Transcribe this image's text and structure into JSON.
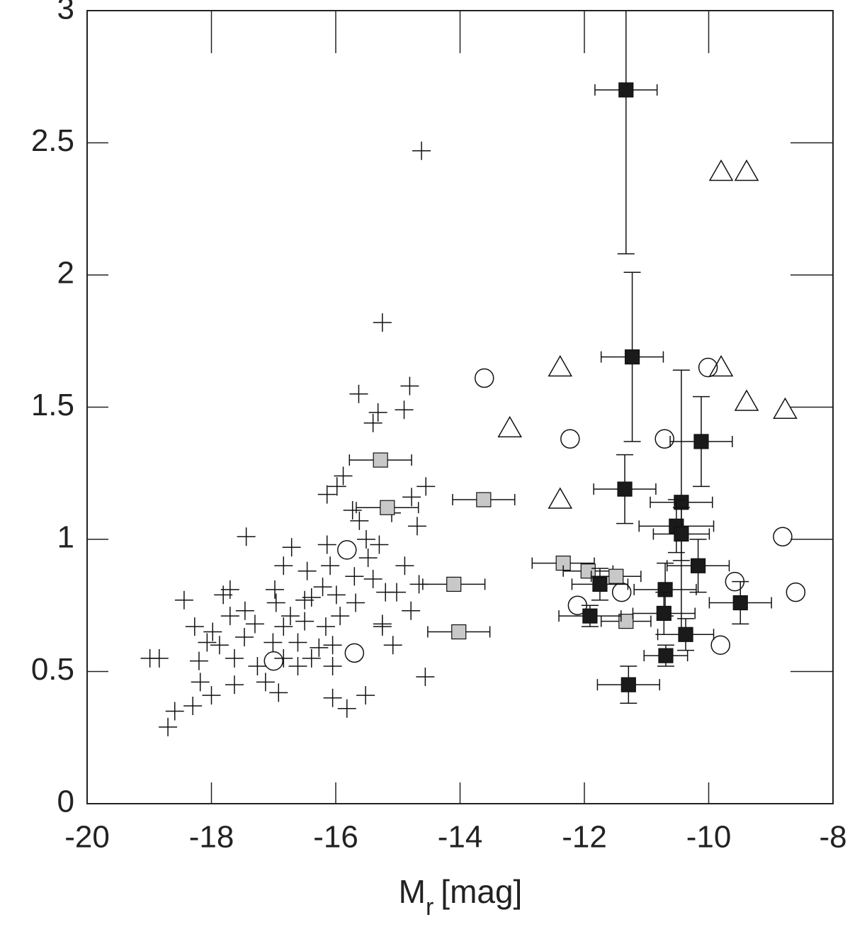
{
  "chart_data": {
    "type": "scatter",
    "x_label": {
      "base": "M",
      "subscript": "r",
      "unit": "[mag]"
    },
    "xlim": [
      -20,
      -8
    ],
    "xticks": [
      -20,
      -18,
      -16,
      -14,
      -12,
      -10,
      -8
    ],
    "ylim": [
      0,
      3
    ],
    "yticks": [
      0,
      0.5,
      1,
      1.5,
      2,
      2.5,
      3
    ],
    "grid": false,
    "series": [
      {
        "marker": "plus",
        "color": "#111111",
        "x": [
          -14.62,
          -15.25,
          -14.81,
          -15.63,
          -14.9,
          -15.32,
          -15.4,
          -14.55,
          -15.98,
          -15.88,
          -16.14,
          -14.78,
          -15.1,
          -14.69,
          -15.73,
          -15.62,
          -15.51,
          -15.3,
          -16.14,
          -17.44,
          -16.71,
          -16.84,
          -16.46,
          -16.09,
          -14.89,
          -15.4,
          -14.66,
          -15.2,
          -17.7,
          -17.81,
          -16.98,
          -18.44,
          -17.46,
          -17.7,
          -16.39,
          -15.99,
          -15.68,
          -14.79,
          -16.73,
          -16.5,
          -16.16,
          -16.84,
          -18.27,
          -18.07,
          -17.47,
          -15.25,
          -15.08,
          -17.87,
          -18.84,
          -18.99,
          -18.2,
          -17.63,
          -17.26,
          -16.84,
          -16.61,
          -16.39,
          -16.05,
          -17.13,
          -17.63,
          -18.18,
          -18.0,
          -18.3,
          -18.59,
          -18.7,
          -16.92,
          -16.05,
          -15.82,
          -15.52,
          -14.56,
          -15.25,
          -17.3,
          -17.01,
          -16.61,
          -16.27,
          -15.7,
          -16.21,
          -15.48,
          -15.02,
          -16.5,
          -16.96,
          -17.98,
          -15.93,
          -16.05
        ],
        "y": [
          2.47,
          1.82,
          1.58,
          1.55,
          1.49,
          1.48,
          1.44,
          1.2,
          1.2,
          1.24,
          1.17,
          1.16,
          1.1,
          1.05,
          1.11,
          1.07,
          1.0,
          0.98,
          0.98,
          1.01,
          0.97,
          0.9,
          0.88,
          0.9,
          0.9,
          0.85,
          0.83,
          0.8,
          0.81,
          0.79,
          0.81,
          0.77,
          0.73,
          0.71,
          0.78,
          0.79,
          0.76,
          0.73,
          0.71,
          0.69,
          0.67,
          0.67,
          0.67,
          0.61,
          0.63,
          0.67,
          0.6,
          0.6,
          0.55,
          0.55,
          0.54,
          0.55,
          0.52,
          0.55,
          0.52,
          0.55,
          0.52,
          0.46,
          0.45,
          0.46,
          0.41,
          0.37,
          0.35,
          0.29,
          0.42,
          0.4,
          0.36,
          0.41,
          0.48,
          0.68,
          0.68,
          0.61,
          0.61,
          0.59,
          0.86,
          0.82,
          0.93,
          0.8,
          0.77,
          0.76,
          0.65,
          0.71,
          0.6
        ]
      },
      {
        "marker": "circle",
        "color": "#111111",
        "x": [
          -13.61,
          -12.23,
          -10.71,
          -10.01,
          -8.81,
          -9.58,
          -8.6,
          -11.4,
          -12.11,
          -9.81,
          -15.82,
          -15.7,
          -17.0
        ],
        "y": [
          1.61,
          1.38,
          1.38,
          1.65,
          1.01,
          0.84,
          0.8,
          0.8,
          0.75,
          0.6,
          0.96,
          0.57,
          0.54
        ]
      },
      {
        "marker": "triangle",
        "color": "#111111",
        "x": [
          -9.8,
          -9.39,
          -12.39,
          -9.8,
          -9.39,
          -8.77,
          -13.2,
          -12.39
        ],
        "y": [
          2.39,
          2.39,
          1.65,
          1.65,
          1.52,
          1.49,
          1.42,
          1.15
        ]
      },
      {
        "marker": "square",
        "color": "#c8c8c8",
        "x": [
          -15.28,
          -15.17,
          -13.62,
          -14.1,
          -14.02,
          -12.34,
          -11.94,
          -11.49,
          -11.33
        ],
        "y": [
          1.3,
          1.12,
          1.15,
          0.83,
          0.65,
          0.91,
          0.88,
          0.86,
          0.69
        ],
        "xerr": [
          0.5,
          0.5,
          0.5,
          0.5,
          0.5,
          0.5,
          0.4,
          0.4,
          0.4
        ]
      },
      {
        "marker": "square",
        "color": "#1a1a1a",
        "x": [
          -11.33,
          -11.23,
          -10.12,
          -11.35,
          -10.44,
          -10.52,
          -10.44,
          -10.17,
          -11.75,
          -10.7,
          -9.49,
          -10.72,
          -11.91,
          -10.37,
          -10.69,
          -11.29
        ],
        "y": [
          2.7,
          1.69,
          1.37,
          1.19,
          1.14,
          1.05,
          1.02,
          0.9,
          0.83,
          0.81,
          0.76,
          0.72,
          0.71,
          0.64,
          0.56,
          0.45
        ],
        "xerr": [
          0.5,
          0.5,
          0.5,
          0.5,
          0.5,
          0.6,
          0.45,
          0.5,
          0.45,
          0.5,
          0.5,
          0.5,
          0.5,
          0.45,
          0.35,
          0.5
        ],
        "yerr": [
          0.62,
          0.32,
          0.17,
          0.13,
          0.5,
          0.1,
          0.1,
          0.1,
          0.06,
          0.1,
          0.08,
          0.08,
          0.04,
          0.06,
          0.04,
          0.07
        ]
      }
    ]
  }
}
